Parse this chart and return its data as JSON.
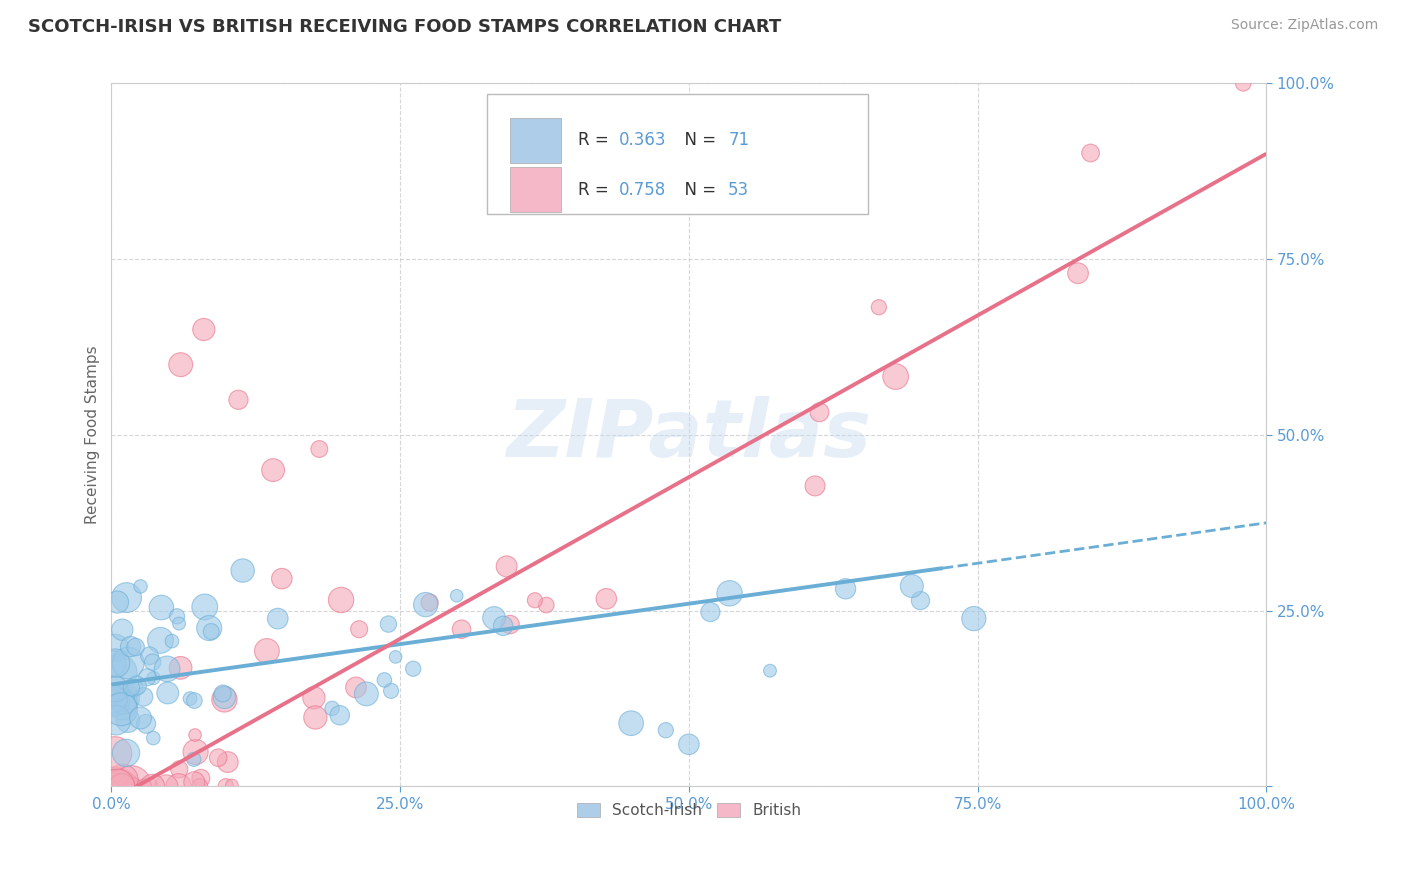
{
  "title": "SCOTCH-IRISH VS BRITISH RECEIVING FOOD STAMPS CORRELATION CHART",
  "source": "Source: ZipAtlas.com",
  "ylabel": "Receiving Food Stamps",
  "watermark": "ZIPatlas",
  "scotch_irish_color": "#6aaed6",
  "scotch_irish_fill": "#9dc9e8",
  "british_color": "#e8718a",
  "british_fill": "#f4a8b8",
  "legend_si_fill": "#aecde8",
  "legend_br_fill": "#f4b8c8",
  "axis_label_color": "#5b9bd5",
  "grid_color": "#cccccc",
  "background_color": "#ffffff",
  "title_fontsize": 13,
  "si_R": 0.363,
  "si_N": 71,
  "br_R": 0.758,
  "br_N": 53,
  "si_line_x0": 0,
  "si_line_y0": 14.5,
  "si_line_x1": 100,
  "si_line_y1": 37.5,
  "si_solid_end": 72,
  "br_line_x0": 0,
  "br_line_y0": -2,
  "br_line_x1": 100,
  "br_line_y1": 90,
  "xlim": [
    0,
    100
  ],
  "ylim": [
    0,
    100
  ],
  "xticks": [
    0,
    25,
    50,
    75,
    100
  ],
  "yticks": [
    0,
    25,
    50,
    75,
    100
  ]
}
